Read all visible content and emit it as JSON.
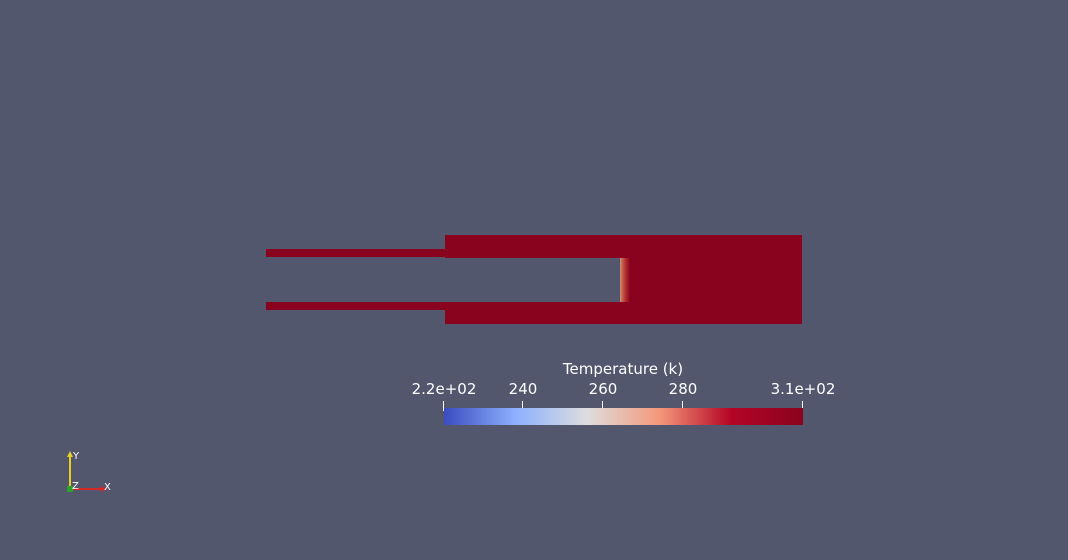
{
  "viewport": {
    "background": "#52576e",
    "geometry_color": "#8a031e"
  },
  "legend": {
    "title": "Temperature (k)",
    "range": [
      220,
      310
    ],
    "ticks": [
      {
        "value": 220,
        "label": "2.2e+02"
      },
      {
        "value": 240,
        "label": "240"
      },
      {
        "value": 260,
        "label": "260"
      },
      {
        "value": 280,
        "label": "280"
      },
      {
        "value": 310,
        "label": "3.1e+02"
      }
    ],
    "colormap": [
      "#3b4cc0",
      "#8db0fe",
      "#dddddd",
      "#f4987a",
      "#b40426",
      "#8a031e"
    ]
  },
  "axes": {
    "x_label": "X",
    "y_label": "Y",
    "z_label": "Z",
    "x_color": "#d62728",
    "y_color": "#e6d21e",
    "z_color": "#2ca02c"
  }
}
